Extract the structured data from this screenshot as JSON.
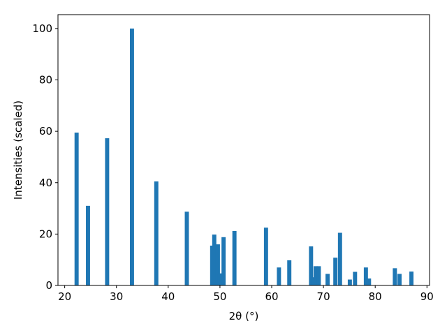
{
  "chart_data": {
    "type": "bar",
    "xlabel": "2θ (°)",
    "ylabel": "Intensities (scaled)",
    "x": [
      22.3,
      24.5,
      28.2,
      33.0,
      37.7,
      43.6,
      48.5,
      48.9,
      49.6,
      50.0,
      50.7,
      52.8,
      58.9,
      61.4,
      63.4,
      67.6,
      68.0,
      68.5,
      69.1,
      70.8,
      72.3,
      73.2,
      75.1,
      76.1,
      78.2,
      78.8,
      83.8,
      84.7,
      87.0
    ],
    "values": [
      59.5,
      31,
      57.3,
      100,
      40.5,
      28.7,
      15.5,
      19.8,
      16,
      4.7,
      18.8,
      21.2,
      22.5,
      7,
      9.8,
      15.2,
      3.2,
      7.5,
      7.5,
      4.5,
      10.8,
      20.5,
      2.3,
      5.3,
      7,
      2.7,
      6.7,
      4.5,
      5.4
    ],
    "color": "#1f77b4",
    "xlim": [
      18.7,
      90.5
    ],
    "xticks": [
      20,
      30,
      40,
      50,
      60,
      70,
      80,
      90
    ],
    "ylim": [
      0,
      105.4
    ],
    "yticks": [
      0,
      20,
      40,
      60,
      80,
      100
    ],
    "grid": false
  }
}
